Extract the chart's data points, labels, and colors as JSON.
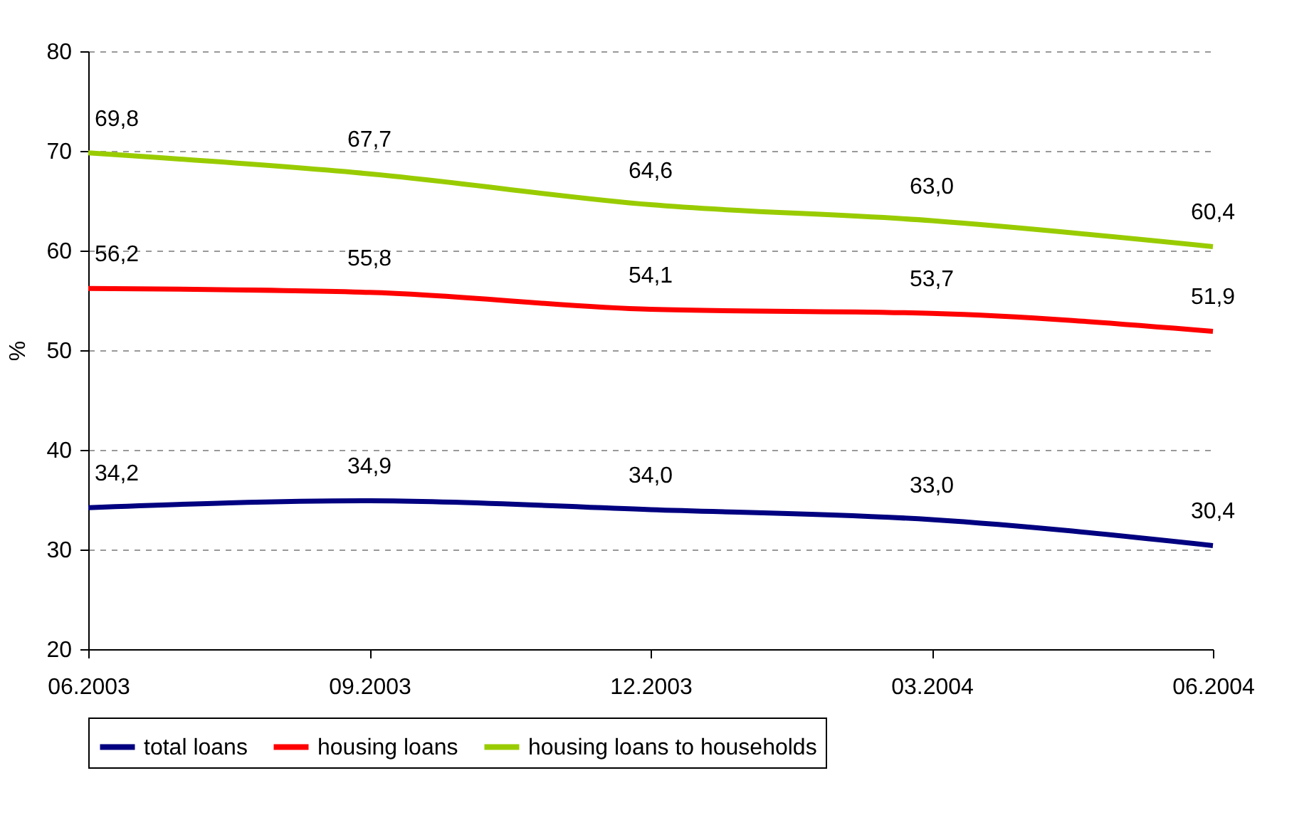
{
  "chart_data": {
    "type": "line",
    "ylabel": "%",
    "categories": [
      "06.2003",
      "09.2003",
      "12.2003",
      "03.2004",
      "06.2004"
    ],
    "series": [
      {
        "name": "total loans",
        "color": "#000080",
        "values": [
          34.2,
          34.9,
          34.0,
          33.0,
          30.4
        ],
        "value_labels": [
          "34,2",
          "34,9",
          "34,0",
          "33,0",
          "30,4"
        ]
      },
      {
        "name": "housing loans",
        "color": "#ff0000",
        "values": [
          56.2,
          55.8,
          54.1,
          53.7,
          51.9
        ],
        "value_labels": [
          "56,2",
          "55,8",
          "54,1",
          "53,7",
          "51,9"
        ]
      },
      {
        "name": "housing loans to households",
        "color": "#99cc00",
        "values": [
          69.8,
          67.7,
          64.6,
          63.0,
          60.4
        ],
        "value_labels": [
          "69,8",
          "67,7",
          "64,6",
          "63,0",
          "60,4"
        ]
      }
    ],
    "ylim": [
      20,
      80
    ],
    "yticks": [
      20,
      30,
      40,
      50,
      60,
      70,
      80
    ],
    "grid": "y",
    "legend": "bottom",
    "marker": "none",
    "line_style": "solid"
  }
}
